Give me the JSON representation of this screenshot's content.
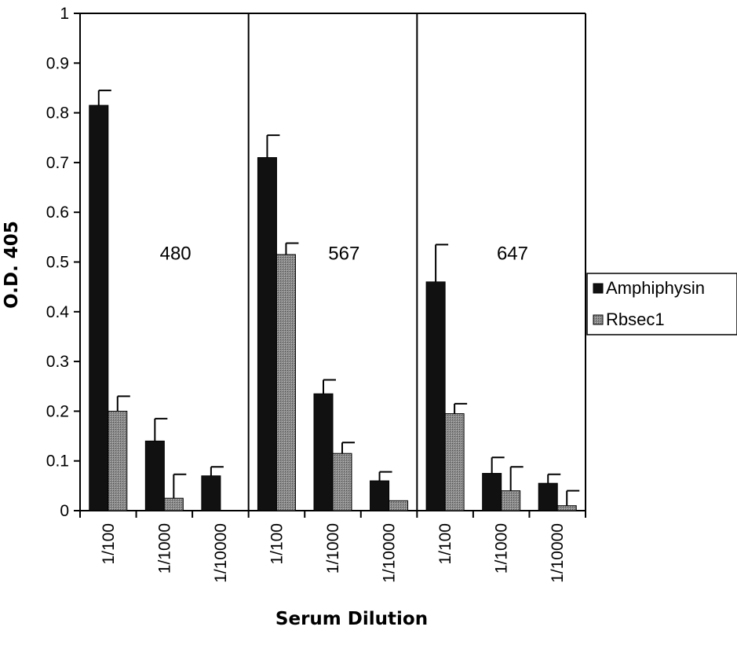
{
  "chart_data": {
    "type": "bar",
    "ylabel": "O.D. 405",
    "xlabel": "Serum Dilution",
    "ylim": [
      0,
      1
    ],
    "yticks": [
      "0",
      "0.1",
      "0.2",
      "0.3",
      "0.4",
      "0.5",
      "0.6",
      "0.7",
      "0.8",
      "0.9",
      "1"
    ],
    "groups": [
      "480",
      "567",
      "647"
    ],
    "categories": [
      "1/100",
      "1/1000",
      "1/10000",
      "1/100",
      "1/1000",
      "1/10000",
      "1/100",
      "1/1000",
      "1/10000"
    ],
    "series": [
      {
        "name": "Amphiphysin",
        "color": "#111111",
        "values": [
          0.815,
          0.14,
          0.07,
          0.71,
          0.235,
          0.06,
          0.46,
          0.075,
          0.055
        ],
        "errors": [
          0.03,
          0.045,
          0.018,
          0.045,
          0.028,
          0.018,
          0.075,
          0.032,
          0.018
        ]
      },
      {
        "name": "Rbsec1",
        "color": "#7a7a7a",
        "values": [
          0.2,
          0.025,
          0.0,
          0.515,
          0.115,
          0.02,
          0.195,
          0.04,
          0.01
        ],
        "errors": [
          0.03,
          0.048,
          0.0,
          0.023,
          0.022,
          0.0,
          0.02,
          0.048,
          0.03
        ]
      }
    ],
    "legend_position": "right",
    "grid": false
  }
}
